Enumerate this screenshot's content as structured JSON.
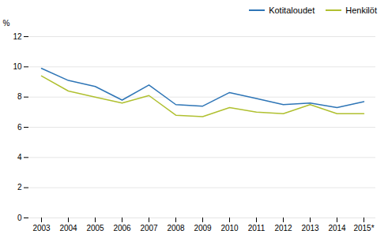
{
  "chart_data": {
    "type": "line",
    "ylabel": "%",
    "categories": [
      "2003",
      "2004",
      "2005",
      "2006",
      "2007",
      "2008",
      "2009",
      "2010",
      "2011",
      "2012",
      "2013",
      "2014",
      "2015*"
    ],
    "series": [
      {
        "name": "Kotitaloudet",
        "color": "#2E75B6",
        "values": [
          9.9,
          9.1,
          8.7,
          7.8,
          8.8,
          7.5,
          7.4,
          8.3,
          7.9,
          7.5,
          7.6,
          7.3,
          7.7
        ]
      },
      {
        "name": "Henkilöt",
        "color": "#B0C030",
        "values": [
          9.4,
          8.4,
          8.0,
          7.6,
          8.1,
          6.8,
          6.7,
          7.3,
          7.0,
          6.9,
          7.5,
          6.9,
          6.9
        ]
      }
    ],
    "ylim": [
      0,
      12
    ],
    "yticks": [
      0,
      2,
      4,
      6,
      8,
      10,
      12
    ],
    "grid": true,
    "legend": "upper right"
  }
}
